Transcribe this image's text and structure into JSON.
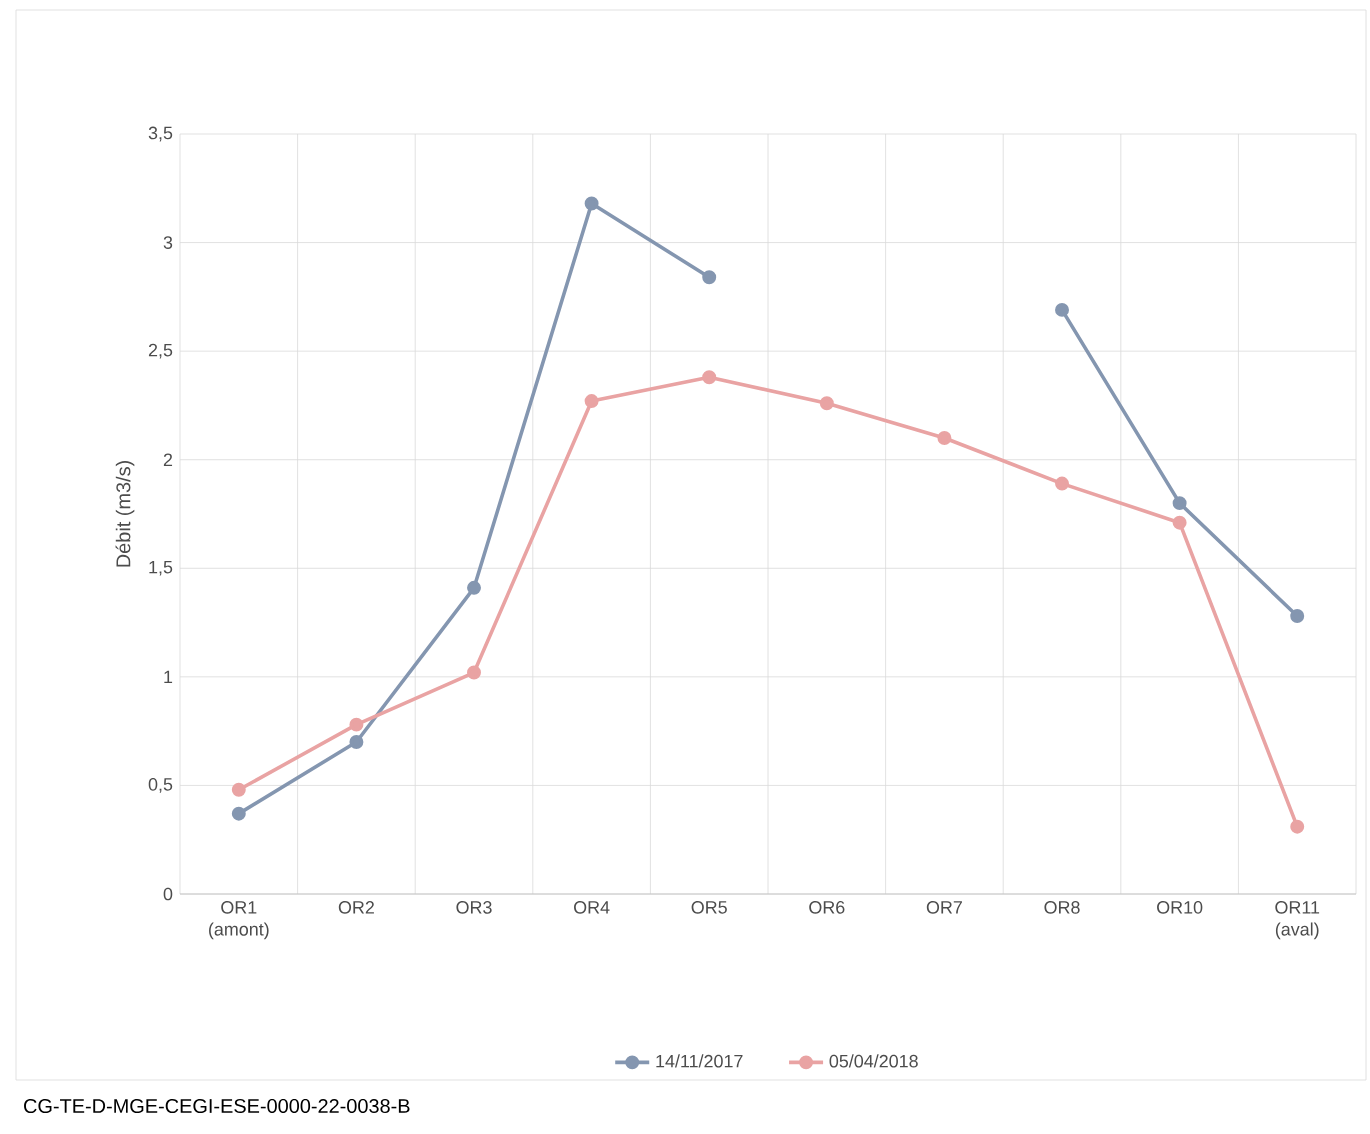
{
  "chart_data": {
    "type": "line",
    "ylabel": "Débit (m3/s)",
    "categories": [
      "OR1 (amont)",
      "OR2",
      "OR3",
      "OR4",
      "OR5",
      "OR6",
      "OR7",
      "OR8",
      "OR10",
      "OR11 (aval)"
    ],
    "series": [
      {
        "name": "14/11/2017",
        "color": "#8496b0",
        "values": [
          0.37,
          0.7,
          1.41,
          3.18,
          2.84,
          null,
          null,
          2.69,
          1.8,
          1.28
        ]
      },
      {
        "name": "05/04/2018",
        "color": "#e9a3a3",
        "values": [
          0.48,
          0.78,
          1.02,
          2.27,
          2.38,
          2.26,
          2.1,
          1.89,
          1.71,
          0.31
        ]
      }
    ],
    "ylim": [
      0,
      3.5
    ],
    "yticks": [
      0,
      {
        "value": 0.5,
        "label": "0,5"
      },
      1,
      {
        "value": 1.5,
        "label": "1,5"
      },
      2,
      {
        "value": 2.5,
        "label": "2,5"
      },
      3,
      {
        "value": 3.5,
        "label": "3,5"
      }
    ],
    "grid": true,
    "legend": "bottom",
    "marker": "circle",
    "line_style": "solid",
    "annotations": [
      "CG-TE-D-MGE-CEGI-ESE-0000-22-0038-B"
    ]
  }
}
